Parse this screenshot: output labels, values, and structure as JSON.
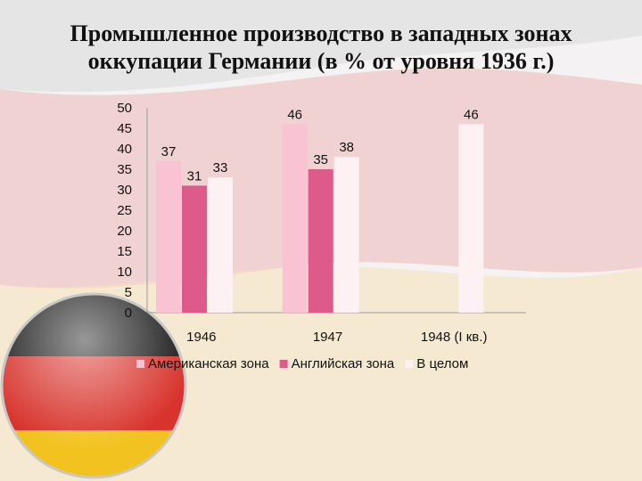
{
  "slide": {
    "title_line1": "Промышленное производство в западных зонах",
    "title_line2": "оккупации Германии (в % от уровня 1936 г.)"
  },
  "colors": {
    "american": "#f9c3d3",
    "british": "#de5a8b",
    "total": "#fdf1f3",
    "flag_black": "#1a1a1a",
    "flag_red": "#d8332c",
    "flag_gold": "#f2c320"
  },
  "chart_data": {
    "type": "bar",
    "title": "Промышленное производство в западных зонах оккупации Германии (в % от уровня 1936 г.)",
    "categories": [
      "1946",
      "1947",
      "1948 (I кв.)"
    ],
    "series": [
      {
        "name": "Американская зона",
        "values": [
          37,
          46,
          null
        ]
      },
      {
        "name": "Английская зона",
        "values": [
          31,
          35,
          null
        ]
      },
      {
        "name": "В целом",
        "values": [
          33,
          38,
          46
        ]
      }
    ],
    "ylim": [
      0,
      50
    ],
    "yticks": [
      "0",
      "5",
      "10",
      "15",
      "20",
      "25",
      "30",
      "35",
      "40",
      "45",
      "50"
    ],
    "grid": false,
    "legend": "bottom"
  }
}
